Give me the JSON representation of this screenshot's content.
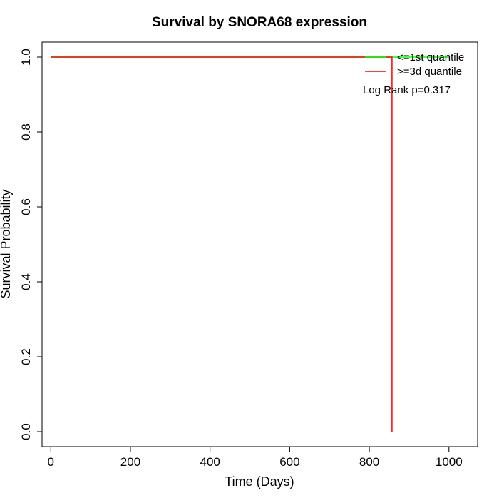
{
  "chart_data": {
    "type": "line",
    "title": "Survival by SNORA68 expression",
    "xlabel": "Time (Days)",
    "ylabel": "Survival Probability",
    "xlim": [
      -22,
      1072
    ],
    "ylim": [
      -0.04,
      1.04
    ],
    "x_ticks": [
      0,
      200,
      400,
      600,
      800,
      1000
    ],
    "y_ticks": [
      0.0,
      0.2,
      0.4,
      0.6,
      0.8,
      1.0
    ],
    "x_tick_labels": [
      "0",
      "200",
      "400",
      "600",
      "800",
      "1000"
    ],
    "y_tick_labels": [
      "0.0",
      "0.2",
      "0.4",
      "0.6",
      "0.8",
      "1.0"
    ],
    "grid": false,
    "legend_position": "top-right",
    "series": [
      {
        "name": "<=1st quantile",
        "color": "#00ff00",
        "step_x": [
          0,
          1000
        ],
        "step_y": [
          1.0,
          1.0
        ]
      },
      {
        "name": ">=3d quantile",
        "color": "#ff0000",
        "step_x": [
          0,
          857,
          857
        ],
        "step_y": [
          1.0,
          1.0,
          0.0
        ]
      }
    ],
    "annotations": [
      {
        "text": "Log Rank p=0.317"
      }
    ]
  }
}
